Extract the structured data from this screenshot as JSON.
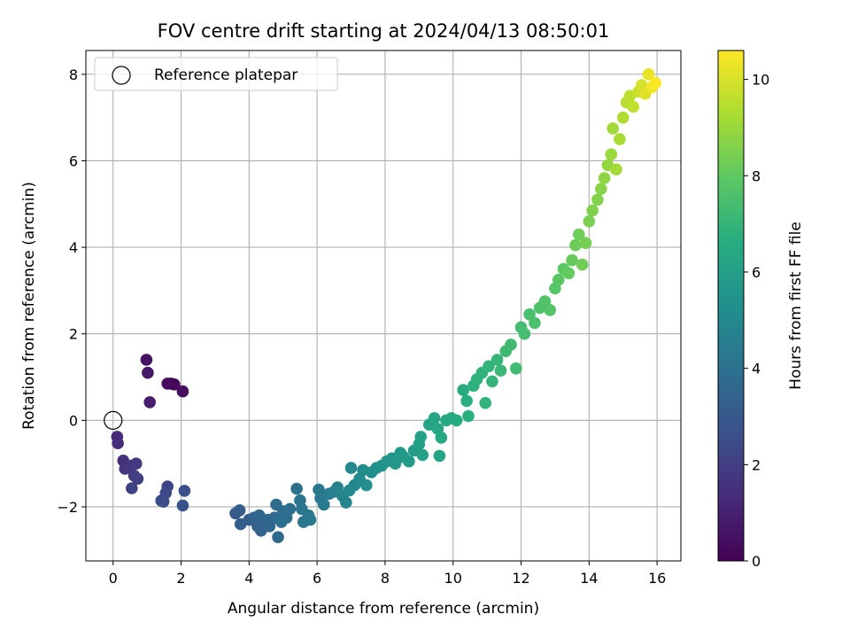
{
  "chart_data": {
    "type": "scatter",
    "title": "FOV centre drift starting at 2024/04/13 08:50:01",
    "xlabel": "Angular distance from reference (arcmin)",
    "ylabel": "Rotation from reference (arcmin)",
    "xlim": [
      -0.8,
      16.7
    ],
    "ylim": [
      -3.25,
      8.55
    ],
    "xticks": [
      0,
      2,
      4,
      6,
      8,
      10,
      12,
      14,
      16
    ],
    "yticks": [
      -2,
      0,
      2,
      4,
      6,
      8
    ],
    "grid": true,
    "legend": {
      "position": "top-left",
      "entries": [
        "Reference platepar"
      ]
    },
    "reference_point": {
      "x": 0,
      "y": 0,
      "label": "Reference platepar"
    },
    "colorbar": {
      "label": "Hours from first FF file",
      "range": [
        0,
        10.6
      ],
      "ticks": [
        0,
        2,
        4,
        6,
        8,
        10
      ],
      "colormap": "viridis"
    },
    "series": [
      {
        "fields": [
          "x",
          "y",
          "hours"
        ],
        "points": [
          [
            1.7,
            0.85,
            0.1
          ],
          [
            1.8,
            0.83,
            0.2
          ],
          [
            2.05,
            0.67,
            0.4
          ],
          [
            1.6,
            0.85,
            0.3
          ],
          [
            0.98,
            1.4,
            0.6
          ],
          [
            1.02,
            1.1,
            0.7
          ],
          [
            1.08,
            0.42,
            0.9
          ],
          [
            0.12,
            -0.38,
            1.3
          ],
          [
            0.14,
            -0.53,
            1.4
          ],
          [
            0.3,
            -0.93,
            1.5
          ],
          [
            0.35,
            -1.12,
            1.6
          ],
          [
            0.52,
            -1.05,
            1.7
          ],
          [
            0.68,
            -1.0,
            1.8
          ],
          [
            0.62,
            -1.28,
            1.9
          ],
          [
            0.72,
            -1.35,
            2.0
          ],
          [
            0.55,
            -1.57,
            2.1
          ],
          [
            1.6,
            -1.53,
            2.2
          ],
          [
            1.55,
            -1.68,
            2.3
          ],
          [
            1.48,
            -1.88,
            2.4
          ],
          [
            1.42,
            -1.86,
            2.5
          ],
          [
            2.1,
            -1.63,
            2.6
          ],
          [
            2.05,
            -1.97,
            2.7
          ],
          [
            3.6,
            -2.15,
            3.0
          ],
          [
            3.72,
            -2.08,
            3.1
          ],
          [
            3.75,
            -2.4,
            3.15
          ],
          [
            4.0,
            -2.3,
            3.2
          ],
          [
            4.15,
            -2.25,
            3.3
          ],
          [
            4.25,
            -2.45,
            3.35
          ],
          [
            4.35,
            -2.55,
            3.4
          ],
          [
            4.45,
            -2.35,
            3.45
          ],
          [
            4.3,
            -2.2,
            3.5
          ],
          [
            4.55,
            -2.3,
            3.55
          ],
          [
            4.6,
            -2.45,
            3.6
          ],
          [
            4.75,
            -2.25,
            3.65
          ],
          [
            4.85,
            -2.7,
            3.7
          ],
          [
            4.8,
            -1.95,
            3.75
          ],
          [
            5.0,
            -2.1,
            3.8
          ],
          [
            5.1,
            -2.25,
            3.85
          ],
          [
            4.95,
            -2.35,
            3.9
          ],
          [
            5.2,
            -2.05,
            3.95
          ],
          [
            5.4,
            -1.58,
            4.0
          ],
          [
            5.5,
            -1.85,
            4.05
          ],
          [
            5.55,
            -2.05,
            4.1
          ],
          [
            5.6,
            -2.35,
            4.15
          ],
          [
            5.75,
            -2.2,
            4.2
          ],
          [
            5.8,
            -2.3,
            4.25
          ],
          [
            6.05,
            -1.6,
            4.3
          ],
          [
            6.1,
            -1.8,
            4.35
          ],
          [
            6.2,
            -1.95,
            4.4
          ],
          [
            6.35,
            -1.7,
            4.5
          ],
          [
            6.5,
            -1.65,
            4.6
          ],
          [
            6.6,
            -1.55,
            4.7
          ],
          [
            6.75,
            -1.75,
            4.8
          ],
          [
            6.85,
            -1.9,
            4.85
          ],
          [
            6.95,
            -1.62,
            4.9
          ],
          [
            7.0,
            -1.1,
            4.95
          ],
          [
            7.1,
            -1.5,
            5.0
          ],
          [
            7.25,
            -1.35,
            5.1
          ],
          [
            7.35,
            -1.15,
            5.15
          ],
          [
            7.45,
            -1.5,
            5.2
          ],
          [
            7.6,
            -1.2,
            5.3
          ],
          [
            7.75,
            -1.1,
            5.35
          ],
          [
            7.9,
            -1.05,
            5.4
          ],
          [
            8.05,
            -0.95,
            5.5
          ],
          [
            8.2,
            -0.88,
            5.55
          ],
          [
            8.3,
            -1.0,
            5.6
          ],
          [
            8.45,
            -0.75,
            5.7
          ],
          [
            8.55,
            -0.85,
            5.75
          ],
          [
            8.7,
            -0.95,
            5.8
          ],
          [
            8.85,
            -0.7,
            5.9
          ],
          [
            9.0,
            -0.55,
            6.0
          ],
          [
            9.1,
            -0.8,
            6.05
          ],
          [
            9.05,
            -0.38,
            6.1
          ],
          [
            9.6,
            -0.82,
            6.15
          ],
          [
            9.3,
            -0.1,
            6.2
          ],
          [
            9.45,
            0.05,
            6.3
          ],
          [
            9.55,
            -0.2,
            6.35
          ],
          [
            9.65,
            -0.4,
            6.4
          ],
          [
            9.8,
            0.0,
            6.45
          ],
          [
            9.95,
            0.05,
            6.5
          ],
          [
            10.1,
            0.0,
            6.55
          ],
          [
            10.3,
            0.7,
            6.6
          ],
          [
            10.4,
            0.45,
            6.65
          ],
          [
            10.45,
            0.1,
            6.7
          ],
          [
            10.6,
            0.8,
            6.75
          ],
          [
            10.7,
            0.95,
            6.8
          ],
          [
            10.85,
            1.1,
            6.85
          ],
          [
            10.95,
            0.4,
            6.9
          ],
          [
            11.05,
            1.25,
            6.95
          ],
          [
            11.15,
            0.9,
            7.0
          ],
          [
            11.3,
            1.4,
            7.05
          ],
          [
            11.4,
            1.15,
            7.1
          ],
          [
            11.55,
            1.6,
            7.2
          ],
          [
            11.7,
            1.75,
            7.25
          ],
          [
            11.85,
            1.2,
            7.3
          ],
          [
            12.0,
            2.15,
            7.35
          ],
          [
            12.1,
            2.0,
            7.4
          ],
          [
            12.25,
            2.45,
            7.5
          ],
          [
            12.4,
            2.25,
            7.55
          ],
          [
            12.55,
            2.6,
            7.6
          ],
          [
            12.7,
            2.75,
            7.7
          ],
          [
            12.85,
            2.55,
            7.75
          ],
          [
            13.0,
            3.05,
            7.8
          ],
          [
            13.1,
            3.25,
            7.9
          ],
          [
            13.25,
            3.5,
            7.95
          ],
          [
            13.4,
            3.4,
            8.05
          ],
          [
            13.5,
            3.7,
            8.1
          ],
          [
            13.6,
            4.05,
            8.2
          ],
          [
            13.7,
            4.3,
            8.25
          ],
          [
            13.8,
            3.6,
            8.3
          ],
          [
            13.9,
            4.1,
            8.4
          ],
          [
            14.0,
            4.6,
            8.45
          ],
          [
            14.1,
            4.85,
            8.55
          ],
          [
            14.25,
            5.1,
            8.6
          ],
          [
            14.35,
            5.35,
            8.7
          ],
          [
            14.45,
            5.6,
            8.8
          ],
          [
            14.55,
            5.9,
            8.9
          ],
          [
            14.65,
            6.15,
            9.0
          ],
          [
            14.7,
            6.75,
            9.1
          ],
          [
            14.8,
            5.8,
            9.15
          ],
          [
            14.9,
            6.5,
            9.25
          ],
          [
            15.0,
            7.0,
            9.35
          ],
          [
            15.1,
            7.35,
            9.45
          ],
          [
            15.2,
            7.5,
            9.55
          ],
          [
            15.3,
            7.25,
            9.65
          ],
          [
            15.45,
            7.6,
            9.8
          ],
          [
            15.55,
            7.75,
            9.95
          ],
          [
            15.65,
            7.55,
            10.1
          ],
          [
            15.75,
            8.0,
            10.25
          ],
          [
            15.85,
            7.7,
            10.4
          ],
          [
            15.95,
            7.8,
            10.55
          ]
        ]
      }
    ]
  }
}
